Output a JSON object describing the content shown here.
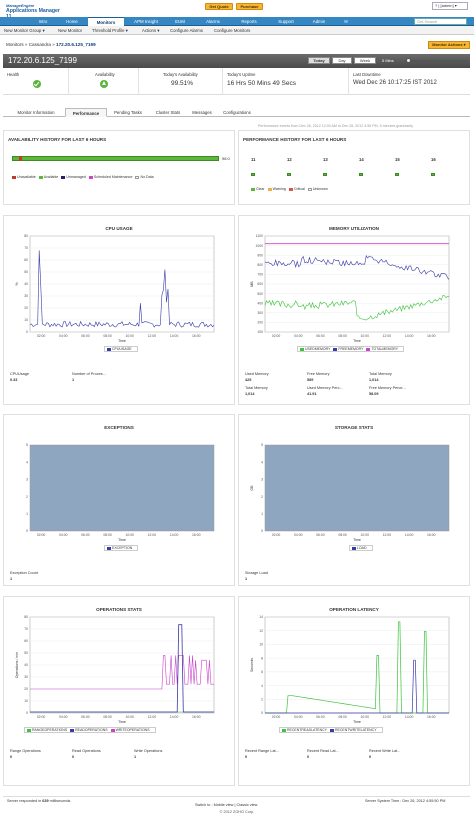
{
  "brand": {
    "line1": "ManageEngine",
    "line2": "Applications Manager 11"
  },
  "top_buttons": {
    "quote": "Get Quote",
    "purchase": "Purchase"
  },
  "top_links": "? | [admin] ▾",
  "nav": [
    "Intro",
    "Home",
    "Monitors",
    "APM Insight",
    "EUM",
    "Alarms",
    "Reports",
    "Support",
    "Admin",
    "✉"
  ],
  "search_placeholder": "Get Search",
  "subnav": [
    "New Monitor Group ▾",
    "New Monitor",
    "Threshold Profile ▾",
    "Actions ▾",
    "Configure Alarms",
    "Configure Monitors"
  ],
  "breadcrumb": {
    "prefix": "Monitors » Cassandra » ",
    "current": "172.20.6.125_7199"
  },
  "monitor_actions": "Monitor Actions ▾",
  "header": {
    "ip": "172.20.6.125_7199",
    "periods": [
      "Today",
      "Day",
      "Week",
      "5 Mins"
    ]
  },
  "summary": {
    "health_label": "Health",
    "availability_label": "Availability",
    "today_avail_label": "Today's Availability",
    "today_avail": "99.51%",
    "uptime_label": "Today's Uptime",
    "uptime": "16 Hrs 50 Mins 49 Secs",
    "downtime_label": "Last Downtime",
    "downtime": "Wed Dec 26 10:17:25 IST 2012"
  },
  "tabs": [
    "Monitor Information",
    "Performance",
    "Pending Tasks",
    "Cluster Stats",
    "Messages",
    "Configurations"
  ],
  "refresh_note": "Performance events from Dec 26, 2012 12:00 AM to Dec 26, 2012 4:55 PM, 5 minutes granularity",
  "availability": {
    "title": "AVAILABILITY HISTORY FOR LAST 6 HOURS",
    "percent": "98.0",
    "legend": [
      "Unavailable",
      "Available",
      "Unmanaged",
      "Scheduled Maintenance",
      "No Data"
    ]
  },
  "performance": {
    "title": "PERFORMANCE HISTORY FOR LAST 6 HOURS",
    "hours": [
      "11",
      "12",
      "13",
      "14",
      "15",
      "16"
    ],
    "legend": [
      "Clear",
      "Warning",
      "Critical",
      "Unknown"
    ]
  },
  "colors": {
    "nav": "#3487c3",
    "available": "#5cb83c",
    "unavailable": "#c0392b",
    "critical": "#d9534f",
    "warning": "#f0ad4e",
    "used": "#3cc43c",
    "free": "#3a3aa8",
    "total": "#cc44cc",
    "exception": "#8ea6c0"
  },
  "charts": {
    "cpu": {
      "title": "CPU USAGE",
      "ylabel": "%",
      "xlabel": "Time",
      "yticks": [
        "0",
        "10",
        "20",
        "30",
        "40",
        "50",
        "60",
        "70",
        "80"
      ],
      "xticks": [
        "02:00",
        "04:00",
        "06:00",
        "08:00",
        "10:00",
        "12:00",
        "14:00",
        "16:00"
      ],
      "legend": [
        "CPUUSAGE"
      ]
    },
    "memory": {
      "title": "MEMORY UTILIZATION",
      "ylabel": "MB",
      "xlabel": "Time",
      "yticks": [
        "100",
        "200",
        "300",
        "400",
        "500",
        "600",
        "700",
        "800",
        "900",
        "1000",
        "1100"
      ],
      "xticks": [
        "02:00",
        "04:00",
        "06:00",
        "08:00",
        "10:00",
        "12:00",
        "14:00",
        "16:00"
      ],
      "legend": [
        "USEDMEMORY",
        "FREEMEMORY",
        "TOTALMEMORY"
      ]
    },
    "exceptions": {
      "title": "EXCEPTIONS",
      "xlabel": "Time",
      "yticks": [
        "0",
        "1",
        "2",
        "3",
        "4",
        "5"
      ],
      "xticks": [
        "02:00",
        "04:00",
        "06:00",
        "08:00",
        "10:00",
        "12:00",
        "14:00",
        "16:00"
      ],
      "legend": [
        "EXCEPTION"
      ]
    },
    "storage": {
      "title": "STORAGE STATS",
      "ylabel": "GB",
      "xlabel": "Time",
      "yticks": [
        "0",
        "1",
        "2",
        "3",
        "4",
        "5"
      ],
      "xticks": [
        "02:00",
        "04:00",
        "06:00",
        "08:00",
        "10:00",
        "12:00",
        "14:00",
        "16:00"
      ],
      "legend": [
        "LOAD"
      ]
    },
    "ops": {
      "title": "OPERATIONS STATS",
      "ylabel": "Operations / min",
      "xlabel": "Time",
      "yticks": [
        "0",
        "10",
        "20",
        "30",
        "40",
        "50",
        "60",
        "70",
        "80"
      ],
      "xticks": [
        "02:00",
        "04:00",
        "06:00",
        "08:00",
        "10:00",
        "12:00",
        "14:00",
        "16:00"
      ],
      "legend": [
        "RANGEOPERATIONS",
        "READOPERATIONS",
        "WRITEOPERATIONS"
      ]
    },
    "latency": {
      "title": "OPERATION LATENCY",
      "ylabel": "Seconds",
      "xlabel": "Time",
      "yticks": [
        "0",
        "2",
        "4",
        "6",
        "8",
        "10",
        "12",
        "14"
      ],
      "xticks": [
        "02:00",
        "04:00",
        "06:00",
        "08:00",
        "10:00",
        "12:00",
        "14:00",
        "16:00"
      ],
      "legend": [
        "RECENTREADLATENCY",
        "RECENTWRITELATENCY"
      ]
    }
  },
  "stats": {
    "cpu": [
      {
        "label": "CPUUsage",
        "value": "0.33"
      },
      {
        "label": "Number of Proces...",
        "value": "1"
      }
    ],
    "memory": [
      {
        "label": "Used Memory",
        "value": "425"
      },
      {
        "label": "Free Memory",
        "value": "589"
      },
      {
        "label": "Total Memory",
        "value": "1,014"
      },
      {
        "label": "Total Memory",
        "value": "1,014"
      },
      {
        "label": "Used Memory Perc...",
        "value": "41.91"
      },
      {
        "label": "Free Memory Perce...",
        "value": "58.09"
      }
    ],
    "exceptions": [
      {
        "label": "Exception Count",
        "value": "1"
      }
    ],
    "storage": [
      {
        "label": "Storage Load",
        "value": "1"
      }
    ],
    "ops": [
      {
        "label": "Range Operations",
        "value": "0"
      },
      {
        "label": "Read Operations",
        "value": "0"
      },
      {
        "label": "Write Operations",
        "value": "1"
      }
    ],
    "latency": [
      {
        "label": "Recent Range Lat...",
        "value": "0"
      },
      {
        "label": "Recent Read Lat...",
        "value": "0"
      },
      {
        "label": "Recent Write Lat...",
        "value": "0"
      }
    ]
  },
  "footer": {
    "response_prefix": "Server responded in ",
    "response_ms": "639",
    "response_suffix": " milliseconds.",
    "switch": "Switch to : Mobile view | Classic view",
    "server_time": "Server System Time : Dec 26, 2012 4:55:50 PM",
    "copyright": "© 2012 ZOHO Corp."
  }
}
